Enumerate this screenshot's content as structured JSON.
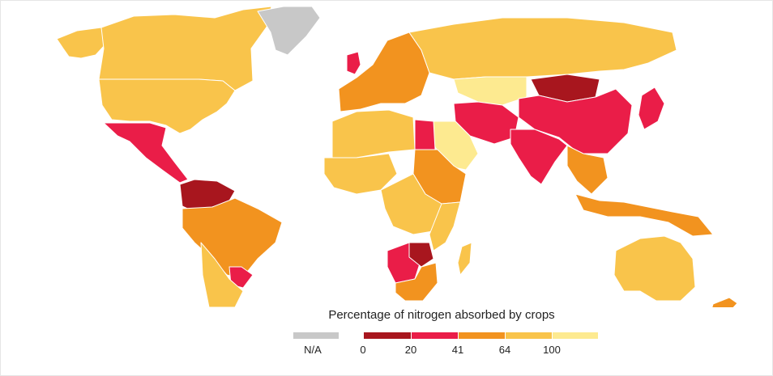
{
  "legend": {
    "title": "Percentage of nitrogen absorbed by crops",
    "na_label": "N/A",
    "tick_labels": [
      "0",
      "20",
      "41",
      "64",
      "100"
    ]
  },
  "colors": {
    "na": "#c8c8c8",
    "bin_0_20": "#a8161e",
    "bin_20_41": "#ea1d48",
    "bin_41_64": "#f2931f",
    "bin_64_100": "#f9c44b",
    "bin_100_plus": "#fdea90",
    "background": "#ffffff"
  },
  "regions": {
    "greenland": "na",
    "canada": "bin_64_100",
    "alaska": "bin_64_100",
    "usa": "bin_64_100",
    "mexico_central_america": "bin_20_41",
    "venezuela_colombia": "bin_0_20",
    "brazil_peru": "bin_41_64",
    "chile_southern_cone": "bin_64_100",
    "uruguay_paraguay": "bin_20_41",
    "western_europe": "bin_41_64",
    "uk_ireland": "bin_20_41",
    "russia": "bin_64_100",
    "kazakhstan": "bin_100_plus",
    "mongolia": "bin_0_20",
    "china": "bin_20_41",
    "india": "bin_20_41",
    "japan_korea": "bin_20_41",
    "north_africa": "bin_64_100",
    "egypt": "bin_20_41",
    "arabia": "bin_100_plus",
    "iran_pakistan": "bin_20_41",
    "west_africa": "bin_64_100",
    "sudan_ethiopia": "bin_41_64",
    "central_africa": "bin_64_100",
    "east_africa": "bin_64_100",
    "namibia_botswana": "bin_20_41",
    "zimbabwe": "bin_0_20",
    "south_africa": "bin_41_64",
    "madagascar": "bin_64_100",
    "southeast_asia": "bin_41_64",
    "indonesia": "bin_41_64",
    "australia": "bin_64_100",
    "new_zealand": "bin_41_64"
  }
}
